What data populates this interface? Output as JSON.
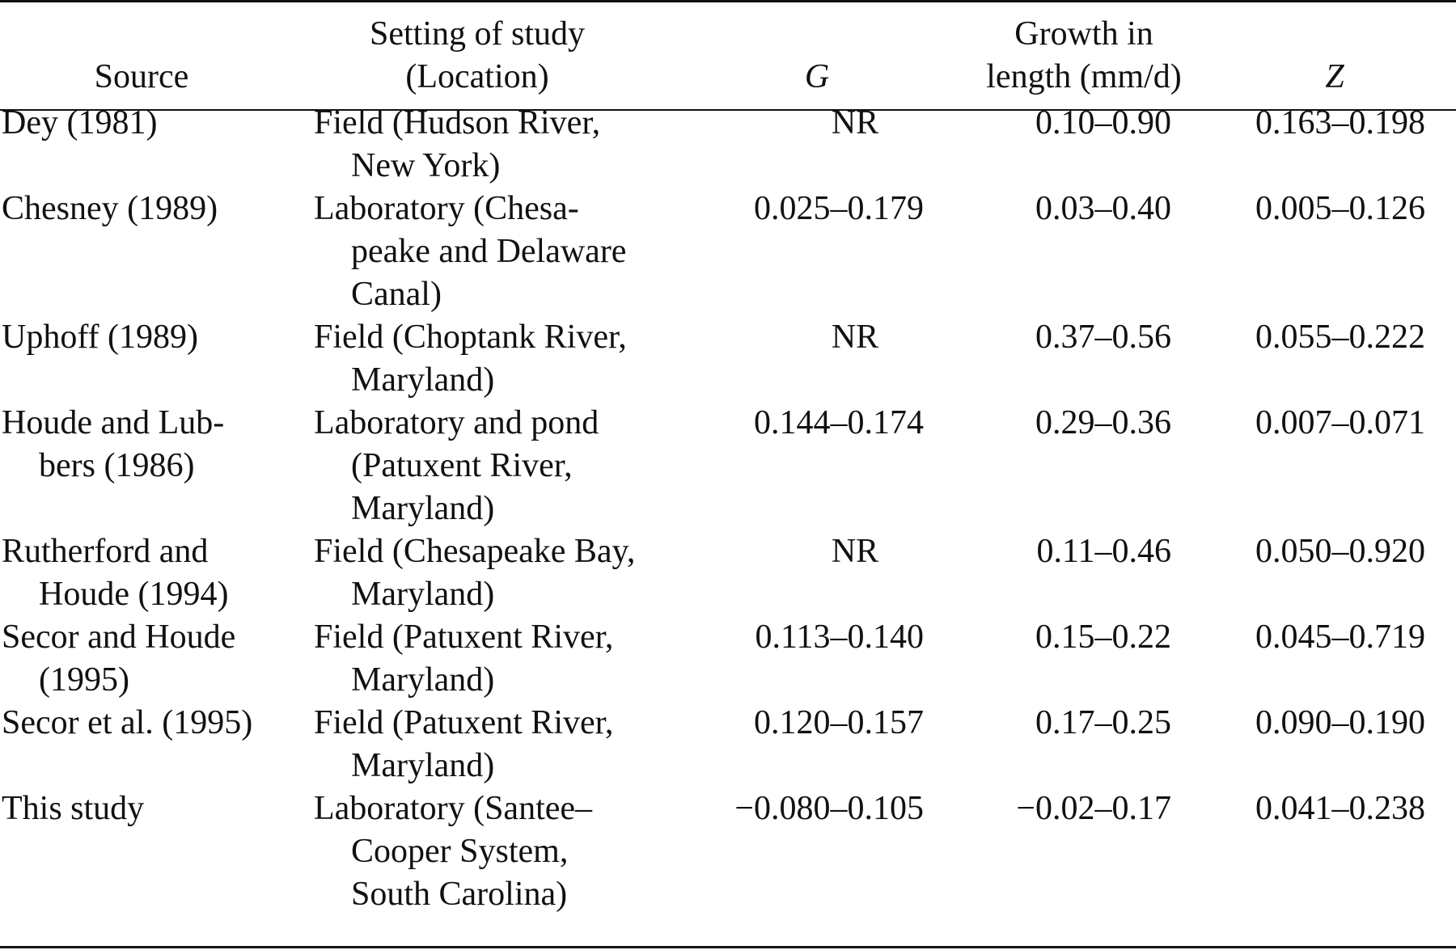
{
  "table": {
    "headers": {
      "source": [
        "Source"
      ],
      "setting": [
        "Setting of study",
        "(Location)"
      ],
      "g": "G",
      "growth": [
        "Growth in",
        "length (mm/d)"
      ],
      "z": "Z"
    },
    "rows": [
      {
        "source": [
          "Dey (1981)"
        ],
        "setting": [
          "Field (Hudson River,",
          "New York)"
        ],
        "g": "NR",
        "growth": "0.10–0.90",
        "z": "0.163–0.198"
      },
      {
        "source": [
          "Chesney (1989)"
        ],
        "setting": [
          "Laboratory (Chesa-",
          "peake and Delaware",
          "Canal)"
        ],
        "g": "0.025–0.179",
        "growth": "0.03–0.40",
        "z": "0.005–0.126"
      },
      {
        "source": [
          "Uphoff (1989)"
        ],
        "setting": [
          "Field (Choptank River,",
          "Maryland)"
        ],
        "g": "NR",
        "growth": "0.37–0.56",
        "z": "0.055–0.222"
      },
      {
        "source": [
          "Houde and Lub-",
          "bers (1986)"
        ],
        "setting": [
          "Laboratory and pond",
          "(Patuxent River,",
          "Maryland)"
        ],
        "g": "0.144–0.174",
        "growth": "0.29–0.36",
        "z": "0.007–0.071"
      },
      {
        "source": [
          "Rutherford and",
          "Houde (1994)"
        ],
        "setting": [
          "Field (Chesapeake Bay,",
          "Maryland)"
        ],
        "g": "NR",
        "growth": "0.11–0.46",
        "z": "0.050–0.920"
      },
      {
        "source": [
          "Secor and Houde",
          "(1995)"
        ],
        "setting": [
          "Field (Patuxent River,",
          "Maryland)"
        ],
        "g": "0.113–0.140",
        "growth": "0.15–0.22",
        "z": "0.045–0.719"
      },
      {
        "source": [
          "Secor et al. (1995)"
        ],
        "setting": [
          "Field (Patuxent River,",
          "Maryland)"
        ],
        "g": "0.120–0.157",
        "growth": "0.17–0.25",
        "z": "0.090–0.190"
      },
      {
        "source": [
          "This study"
        ],
        "setting": [
          "Laboratory (Santee–",
          "Cooper System,",
          "South Carolina)"
        ],
        "g": "−0.080–0.105",
        "growth": "−0.02–0.17",
        "z": "0.041–0.238"
      }
    ]
  }
}
